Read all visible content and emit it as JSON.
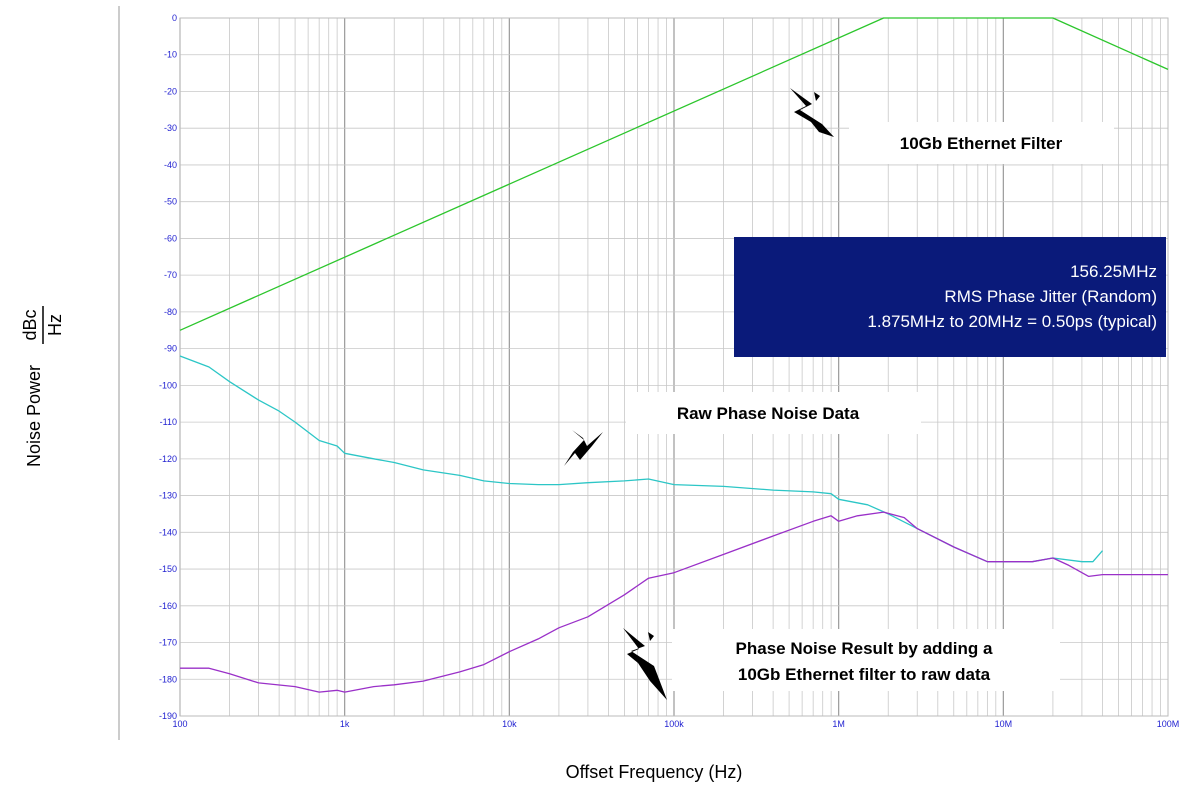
{
  "chart_data": {
    "type": "line",
    "xscale": "log",
    "xlim": [
      100,
      100000000
    ],
    "ylim": [
      -190,
      0
    ],
    "xlabel": "Offset Frequency (Hz)",
    "ylabel": "Noise Power",
    "ylabel_unit_num": "dBc",
    "ylabel_unit_den": "Hz",
    "grid": true,
    "x_ticks": [
      {
        "value": 100,
        "label": "100"
      },
      {
        "value": 1000,
        "label": "1k"
      },
      {
        "value": 10000,
        "label": "10k"
      },
      {
        "value": 100000,
        "label": "100k"
      },
      {
        "value": 1000000,
        "label": "1M"
      },
      {
        "value": 10000000,
        "label": "10M"
      },
      {
        "value": 100000000,
        "label": "100M"
      }
    ],
    "y_ticks": [
      0,
      -10,
      -20,
      -30,
      -40,
      -50,
      -60,
      -70,
      -80,
      -90,
      -100,
      -110,
      -120,
      -130,
      -140,
      -150,
      -160,
      -170,
      -180,
      -190
    ],
    "colors": {
      "filter": "#2cc62c",
      "raw": "#2cc6c6",
      "result": "#9a30c8",
      "grid": "#c8c8c8",
      "tick_label": "#1f1fd0",
      "info_box": "#0a1a7a"
    },
    "series": [
      {
        "key": "filter",
        "points": [
          [
            100,
            -85
          ],
          [
            1875000,
            0
          ],
          [
            20000000,
            0
          ],
          [
            100000000,
            -14
          ]
        ]
      },
      {
        "key": "raw",
        "points": [
          [
            100,
            -92
          ],
          [
            150,
            -95
          ],
          [
            200,
            -99
          ],
          [
            300,
            -104
          ],
          [
            400,
            -107
          ],
          [
            500,
            -110
          ],
          [
            700,
            -115
          ],
          [
            900,
            -116.5
          ],
          [
            1000,
            -118.5
          ],
          [
            1500,
            -120
          ],
          [
            2000,
            -121
          ],
          [
            3000,
            -123
          ],
          [
            5000,
            -124.5
          ],
          [
            7000,
            -126
          ],
          [
            10000,
            -126.7
          ],
          [
            15000,
            -127
          ],
          [
            20000,
            -127
          ],
          [
            30000,
            -126.5
          ],
          [
            50000,
            -126
          ],
          [
            70000,
            -125.5
          ],
          [
            100000,
            -127
          ],
          [
            200000,
            -127.5
          ],
          [
            400000,
            -128.5
          ],
          [
            700000,
            -129
          ],
          [
            900000,
            -129.5
          ],
          [
            1000000,
            -131
          ],
          [
            1500000,
            -132.5
          ],
          [
            2000000,
            -135
          ],
          [
            3000000,
            -139
          ],
          [
            5000000,
            -144
          ],
          [
            8000000,
            -148
          ],
          [
            15000000,
            -148
          ],
          [
            20000000,
            -147
          ],
          [
            30000000,
            -148
          ],
          [
            35000000,
            -148
          ],
          [
            40000000,
            -145
          ]
        ]
      },
      {
        "key": "result",
        "points": [
          [
            100,
            -177
          ],
          [
            150,
            -177
          ],
          [
            200,
            -178.5
          ],
          [
            300,
            -181
          ],
          [
            500,
            -182
          ],
          [
            700,
            -183.5
          ],
          [
            900,
            -183
          ],
          [
            1000,
            -183.5
          ],
          [
            1500,
            -182
          ],
          [
            2000,
            -181.5
          ],
          [
            3000,
            -180.5
          ],
          [
            5000,
            -178
          ],
          [
            7000,
            -176
          ],
          [
            10000,
            -172.5
          ],
          [
            15000,
            -169
          ],
          [
            20000,
            -166
          ],
          [
            30000,
            -163
          ],
          [
            50000,
            -157
          ],
          [
            70000,
            -152.5
          ],
          [
            100000,
            -151
          ],
          [
            200000,
            -146
          ],
          [
            400000,
            -141
          ],
          [
            700000,
            -137
          ],
          [
            900000,
            -135.5
          ],
          [
            1000000,
            -137
          ],
          [
            1300000,
            -135.5
          ],
          [
            1875000,
            -134.5
          ],
          [
            2500000,
            -136
          ],
          [
            3000000,
            -139
          ],
          [
            5000000,
            -144
          ],
          [
            8000000,
            -148
          ],
          [
            15000000,
            -148
          ],
          [
            20000000,
            -147
          ],
          [
            25000000,
            -149
          ],
          [
            33000000,
            -152
          ],
          [
            40000000,
            -151.5
          ],
          [
            100000000,
            -151.5
          ]
        ]
      }
    ],
    "annotations": {
      "filter_label": "10Gb Ethernet Filter",
      "raw_label": "Raw Phase Noise Data",
      "result_label_line1": "Phase Noise Result by adding a",
      "result_label_line2": "10Gb Ethernet filter to raw data"
    },
    "info_box": {
      "line1": "156.25MHz",
      "line2": "RMS Phase Jitter (Random)",
      "line3": "1.875MHz to 20MHz = 0.50ps (typical)"
    }
  }
}
